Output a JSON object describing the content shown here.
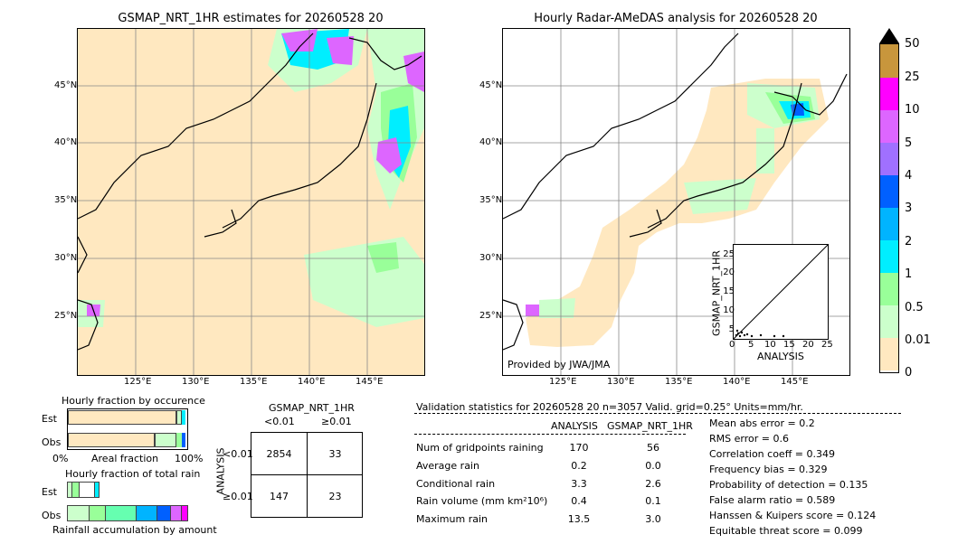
{
  "left_map": {
    "title": "GSMAP_NRT_1HR estimates for 20260528 20",
    "lat_labels": [
      "45°N",
      "40°N",
      "35°N",
      "30°N",
      "25°N"
    ],
    "lon_labels": [
      "125°E",
      "130°E",
      "135°E",
      "140°E",
      "145°E"
    ]
  },
  "right_map": {
    "title": "Hourly Radar-AMeDAS analysis for 20260528 20",
    "lat_labels": [
      "45°N",
      "40°N",
      "35°N",
      "30°N",
      "25°N"
    ],
    "lon_labels": [
      "125°E",
      "130°E",
      "135°E",
      "140°E",
      "145°E"
    ],
    "credit": "Provided by JWA/JMA"
  },
  "colorbar": {
    "labels": [
      "50",
      "25",
      "10",
      "5",
      "4",
      "3",
      "2",
      "1",
      "0.5",
      "0.01",
      "0"
    ],
    "colors": [
      "#c8963c",
      "#ff00ff",
      "#dd66ff",
      "#a070ff",
      "#0060ff",
      "#00b4ff",
      "#00eeff",
      "#66ffb0",
      "#99ff99",
      "#ccffcc",
      "#ffe8c0"
    ]
  },
  "scatter_inset": {
    "ylabel": "GSMAP_NRT_1HR",
    "xlabel": "ANALYSIS",
    "ticks": [
      "0",
      "5",
      "10",
      "15",
      "20",
      "25"
    ]
  },
  "fraction_occurrence": {
    "title": "Hourly fraction by occurence",
    "rows": [
      "Est",
      "Obs"
    ],
    "axis_left": "0%",
    "axis_mid": "Areal fraction",
    "axis_right": "100%"
  },
  "fraction_total": {
    "title": "Hourly fraction of total rain",
    "rows": [
      "Est",
      "Obs"
    ],
    "footer": "Rainfall accumulation by amount"
  },
  "contingency": {
    "title": "GSMAP_NRT_1HR",
    "col_lt": "<0.01",
    "col_ge": "≥0.01",
    "side_label": "ANALYSIS",
    "row_lt": "<0.01",
    "row_ge": "≥0.01",
    "cells": [
      "2854",
      "33",
      "147",
      "23"
    ]
  },
  "validation": {
    "header": "Validation statistics for 20260528 20  n=3057 Valid. grid=0.25° Units=mm/hr.",
    "col_analysis": "ANALYSIS",
    "col_gsmap": "GSMAP_NRT_1HR",
    "rows": [
      {
        "label": "Num of gridpoints raining",
        "a": "170",
        "g": "56"
      },
      {
        "label": "Average rain",
        "a": "0.2",
        "g": "0.0"
      },
      {
        "label": "Conditional rain",
        "a": "3.3",
        "g": "2.6"
      },
      {
        "label": "Rain volume (mm km²10⁶)",
        "a": "0.4",
        "g": "0.1"
      },
      {
        "label": "Maximum rain",
        "a": "13.5",
        "g": "3.0"
      }
    ],
    "scores": [
      "Mean abs error =    0.2",
      "RMS error =    0.6",
      "Correlation coeff =  0.349",
      "Frequency bias =  0.329",
      "Probability of detection =  0.135",
      "False alarm ratio =  0.589",
      "Hanssen & Kuipers score =  0.124",
      "Equitable threat score =  0.099"
    ]
  },
  "chart_data": [
    {
      "type": "heatmap",
      "title": "GSMAP_NRT_1HR estimates for 20260528 20",
      "x_ticks": [
        "125°E",
        "130°E",
        "135°E",
        "140°E",
        "145°E"
      ],
      "y_ticks": [
        "45°N",
        "40°N",
        "35°N",
        "30°N",
        "25°N"
      ]
    },
    {
      "type": "heatmap",
      "title": "Hourly Radar-AMeDAS analysis for 20260528 20",
      "x_ticks": [
        "125°E",
        "130°E",
        "135°E",
        "140°E",
        "145°E"
      ],
      "y_ticks": [
        "45°N",
        "40°N",
        "35°N",
        "30°N",
        "25°N"
      ]
    },
    {
      "type": "scatter",
      "xlabel": "ANALYSIS",
      "ylabel": "GSMAP_NRT_1HR",
      "xlim": [
        0,
        25
      ],
      "ylim": [
        0,
        25
      ]
    },
    {
      "type": "table",
      "title": "GSMAP_NRT_1HR",
      "values": [
        [
          2854,
          33
        ],
        [
          147,
          23
        ]
      ]
    }
  ]
}
